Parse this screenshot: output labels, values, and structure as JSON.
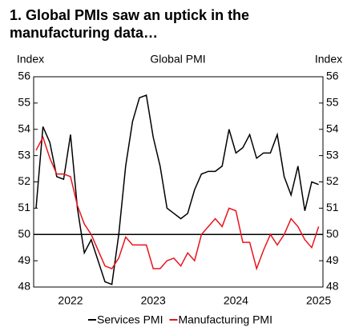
{
  "chart_data": {
    "type": "line",
    "title": "1. Global PMIs saw an uptick in the manufacturing data…",
    "subtitle": "Global PMI",
    "ylabel": "Index",
    "y2label": "Index",
    "categories": [
      null,
      null,
      null,
      null,
      null,
      "2022",
      null,
      null,
      null,
      null,
      null,
      null,
      null,
      null,
      null,
      null,
      null,
      "2023",
      null,
      null,
      null,
      null,
      null,
      null,
      null,
      null,
      null,
      null,
      null,
      "2024",
      null,
      null,
      null,
      null,
      null,
      null,
      null,
      null,
      null,
      null,
      null,
      "2025"
    ],
    "series": [
      {
        "name": "Services PMI",
        "color": "#000000",
        "values": [
          51.0,
          54.1,
          53.5,
          52.2,
          52.1,
          53.8,
          51.0,
          49.3,
          49.8,
          49.0,
          48.2,
          48.1,
          50.0,
          52.6,
          54.3,
          55.2,
          55.3,
          53.7,
          52.6,
          51.0,
          50.8,
          50.6,
          50.8,
          51.7,
          52.3,
          52.4,
          52.4,
          52.6,
          54.0,
          53.1,
          53.3,
          53.8,
          52.9,
          53.1,
          53.1,
          53.8,
          52.2,
          51.5,
          52.6,
          50.9,
          52.0,
          51.9
        ]
      },
      {
        "name": "Manufacturing PMI",
        "color": "#e8141c",
        "values": [
          53.2,
          53.7,
          52.9,
          52.3,
          52.3,
          52.2,
          51.1,
          50.4,
          50.0,
          49.4,
          48.8,
          48.7,
          49.1,
          49.9,
          49.6,
          49.6,
          49.6,
          48.7,
          48.7,
          49.0,
          49.1,
          48.8,
          49.3,
          49.0,
          50.0,
          50.3,
          50.6,
          50.3,
          51.0,
          50.9,
          49.7,
          49.7,
          48.7,
          49.4,
          50.0,
          49.6,
          50.0,
          50.6,
          50.3,
          49.8,
          49.5,
          50.3
        ]
      }
    ],
    "reference_line": 50,
    "ylim": [
      48,
      56
    ],
    "yticks": [
      48,
      49,
      50,
      51,
      52,
      53,
      54,
      55,
      56
    ],
    "y2lim": [
      48,
      56
    ],
    "y2ticks": [
      48,
      49,
      50,
      51,
      52,
      53,
      54,
      55,
      56
    ],
    "legend": "bottom"
  }
}
